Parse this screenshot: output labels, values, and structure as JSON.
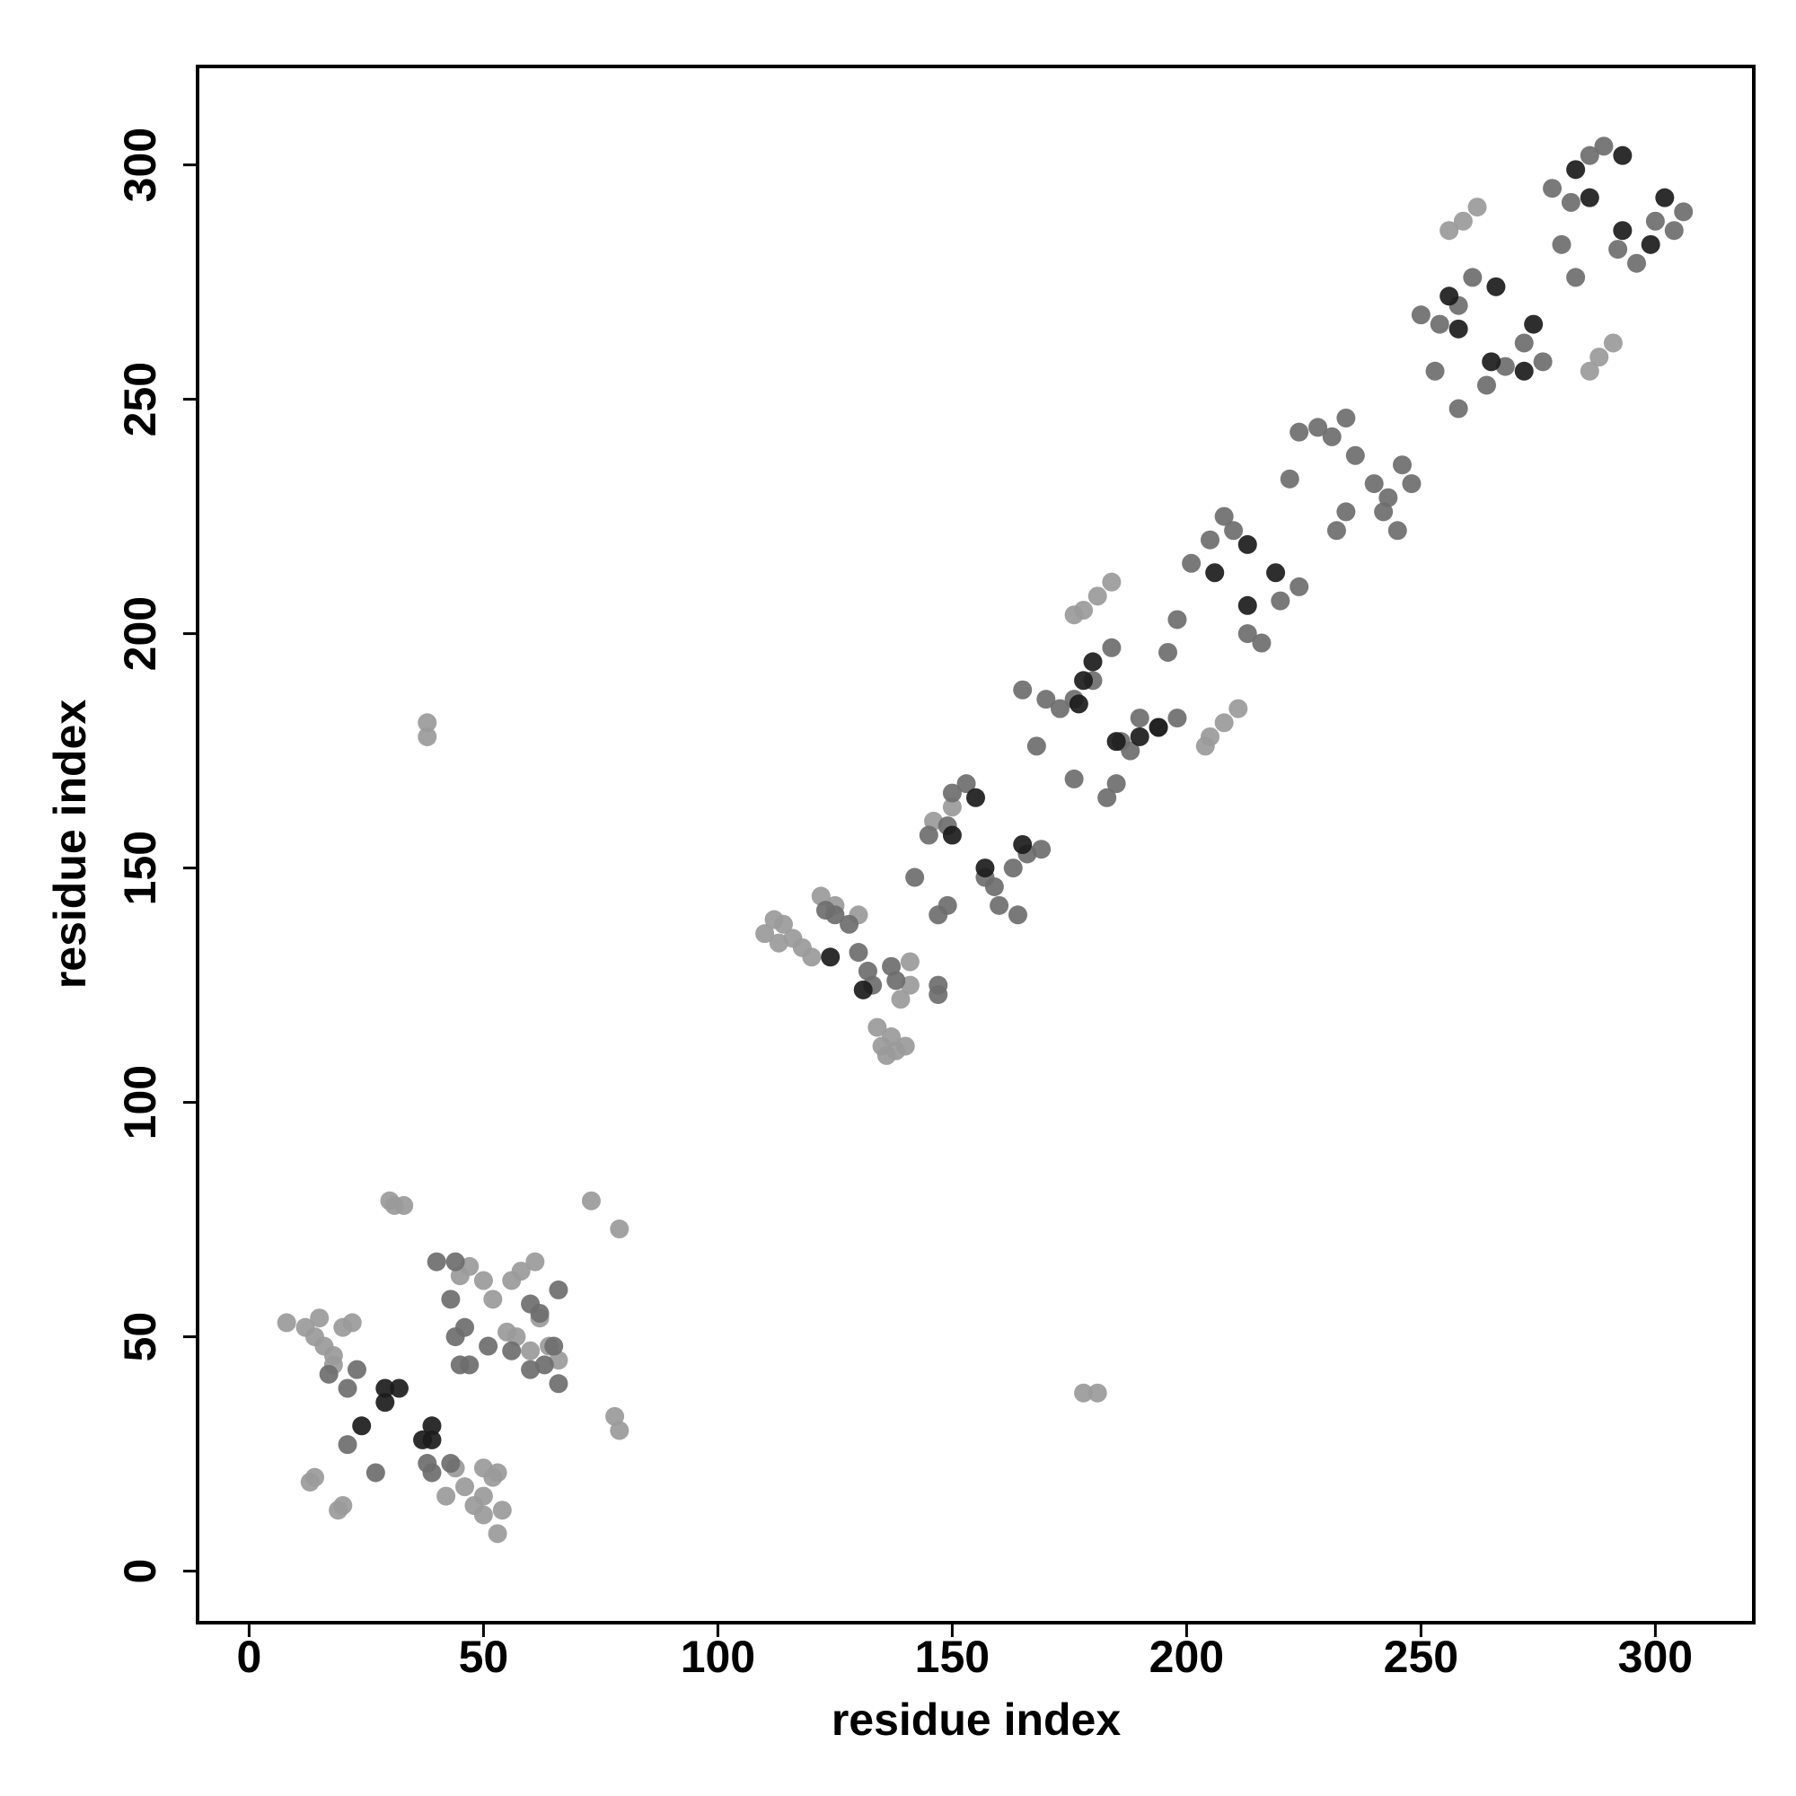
{
  "chart_data": {
    "type": "scatter",
    "x_label": "residue index",
    "y_label": "residue index",
    "xlim": [
      -11,
      321
    ],
    "ylim": [
      -11,
      321
    ],
    "xticks": [
      0,
      50,
      100,
      150,
      200,
      250,
      300
    ],
    "yticks": [
      0,
      50,
      100,
      150,
      200,
      250,
      300
    ],
    "grid": false,
    "series": [
      {
        "color": "#9a9a9a",
        "x": [
          8,
          12,
          14,
          16,
          18,
          15,
          20,
          22,
          18,
          13,
          14,
          19,
          20,
          30,
          31,
          33,
          73,
          79,
          78,
          79,
          38,
          38,
          178,
          181,
          52,
          50,
          48,
          53,
          54,
          53,
          46,
          50,
          45,
          47,
          50,
          52,
          56,
          58,
          61,
          62,
          64,
          66,
          60,
          57,
          55,
          50,
          44,
          42,
          110,
          112,
          114,
          116,
          118,
          120,
          113,
          135,
          136,
          138,
          140,
          137,
          134,
          139,
          141,
          141,
          130,
          125,
          122,
          178,
          181,
          184,
          176,
          205,
          208,
          211,
          204,
          256,
          259,
          262,
          286,
          288,
          291,
          150,
          146
        ],
        "values": [
          53,
          52,
          50,
          48,
          46,
          54,
          52,
          53,
          44,
          19,
          20,
          13,
          14,
          79,
          78,
          78,
          79,
          73,
          33,
          30,
          181,
          178,
          38,
          38,
          20,
          16,
          14,
          21,
          13,
          8,
          18,
          12,
          63,
          65,
          62,
          58,
          62,
          64,
          66,
          54,
          48,
          45,
          47,
          50,
          51,
          22,
          22,
          16,
          136,
          139,
          138,
          135,
          133,
          131,
          134,
          112,
          110,
          111,
          112,
          114,
          116,
          122,
          125,
          130,
          140,
          142,
          144,
          205,
          208,
          211,
          204,
          178,
          181,
          184,
          176,
          286,
          288,
          291,
          256,
          259,
          262,
          163,
          160
        ]
      },
      {
        "color": "#6e6e6e",
        "x": [
          123,
          125,
          128,
          130,
          132,
          133,
          137,
          138,
          142,
          145,
          149,
          150,
          153,
          147,
          147,
          157,
          159,
          163,
          166,
          169,
          165,
          170,
          173,
          176,
          180,
          184,
          186,
          188,
          190,
          194,
          198,
          201,
          205,
          208,
          210,
          213,
          216,
          220,
          224,
          228,
          231,
          234,
          236,
          240,
          243,
          246,
          248,
          250,
          254,
          258,
          261,
          264,
          268,
          272,
          276,
          278,
          282,
          286,
          289,
          292,
          296,
          300,
          304,
          306,
          280,
          283,
          258,
          253,
          242,
          245,
          232,
          234,
          222,
          224,
          198,
          196,
          176,
          168,
          185,
          183,
          164,
          160,
          149,
          147,
          51,
          56,
          60,
          63,
          66,
          44,
          46,
          44,
          40,
          43,
          60,
          62,
          66,
          21,
          23,
          17,
          21,
          27,
          38,
          39,
          43,
          65,
          45,
          47
        ],
        "values": [
          141,
          140,
          138,
          132,
          128,
          125,
          129,
          126,
          148,
          157,
          159,
          166,
          168,
          125,
          123,
          148,
          146,
          150,
          153,
          154,
          188,
          186,
          184,
          186,
          190,
          197,
          177,
          175,
          182,
          180,
          182,
          215,
          220,
          225,
          222,
          200,
          198,
          207,
          210,
          244,
          242,
          246,
          238,
          232,
          229,
          236,
          232,
          268,
          266,
          270,
          276,
          253,
          257,
          262,
          258,
          295,
          292,
          302,
          304,
          282,
          279,
          288,
          286,
          290,
          283,
          276,
          248,
          256,
          226,
          222,
          222,
          226,
          233,
          243,
          203,
          196,
          169,
          176,
          168,
          165,
          140,
          142,
          142,
          140,
          48,
          47,
          43,
          44,
          40,
          50,
          52,
          66,
          66,
          58,
          57,
          55,
          60,
          39,
          43,
          42,
          27,
          21,
          23,
          21,
          23,
          48,
          44,
          44
        ]
      },
      {
        "color": "#1c1c1c",
        "x": [
          24,
          29,
          32,
          29,
          37,
          39,
          39,
          124,
          131,
          150,
          157,
          155,
          165,
          177,
          185,
          180,
          194,
          178,
          190,
          206,
          213,
          213,
          219,
          258,
          265,
          266,
          274,
          286,
          293,
          302,
          293,
          283,
          299,
          272,
          256
        ],
        "values": [
          31,
          39,
          39,
          36,
          28,
          31,
          28,
          131,
          124,
          157,
          150,
          165,
          155,
          185,
          177,
          194,
          180,
          190,
          178,
          213,
          206,
          219,
          213,
          265,
          258,
          274,
          266,
          293,
          286,
          293,
          302,
          299,
          283,
          256,
          272
        ]
      }
    ]
  }
}
